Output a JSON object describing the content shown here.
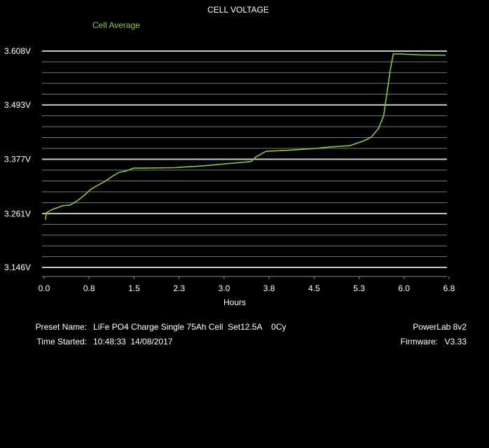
{
  "chart_data": {
    "type": "line",
    "title": "CELL VOLTAGE",
    "xlabel": "Hours",
    "x": [
      0.02,
      0.04,
      0.14,
      0.32,
      0.43,
      0.55,
      0.67,
      0.78,
      0.9,
      1.02,
      1.13,
      1.25,
      1.37,
      1.49,
      1.6,
      2.18,
      2.65,
      3.0,
      3.45,
      3.53,
      3.7,
      4.05,
      4.52,
      4.75,
      5.1,
      5.34,
      5.45,
      5.57,
      5.66,
      5.72,
      5.77,
      5.82,
      5.92,
      6.27,
      6.69
    ],
    "series": [
      {
        "name": "Cell Average",
        "color": "#8dc63f",
        "values": [
          3.248,
          3.263,
          3.27,
          3.278,
          3.279,
          3.288,
          3.3,
          3.313,
          3.322,
          3.33,
          3.34,
          3.349,
          3.352,
          3.358,
          3.358,
          3.359,
          3.363,
          3.367,
          3.372,
          3.382,
          3.394,
          3.396,
          3.4,
          3.403,
          3.406,
          3.417,
          3.424,
          3.442,
          3.47,
          3.523,
          3.568,
          3.602,
          3.602,
          3.6,
          3.599
        ]
      }
    ],
    "xlim": [
      0,
      6.75
    ],
    "xticks": [
      {
        "value": 0,
        "label": "0.0"
      },
      {
        "value": 0.75,
        "label": "0.8"
      },
      1.5,
      {
        "value": 2.25,
        "label": "2.3"
      },
      {
        "value": 3,
        "label": "3.0"
      },
      {
        "value": 3.75,
        "label": "3.8"
      },
      4.5,
      {
        "value": 5.25,
        "label": "5.3"
      },
      {
        "value": 6,
        "label": "6.0"
      },
      {
        "value": 6.75,
        "label": "6.8"
      }
    ],
    "ylim": [
      3.146,
      3.608
    ],
    "yticks": [
      {
        "value": 3.146,
        "label": "3.146V"
      },
      {
        "value": 3.261,
        "label": "3.261V"
      },
      {
        "value": 3.377,
        "label": "3.377V"
      },
      {
        "value": 3.493,
        "label": "3.493V"
      },
      {
        "value": 3.608,
        "label": "3.608V"
      }
    ],
    "grid": true
  },
  "info": {
    "preset_label": "Preset Name:",
    "preset": "LiFe PO4 Charge Single 75Ah Cell  Set12.5A    0Cy",
    "time_label": "Time Started:",
    "time": "10:48:33  14/08/2017",
    "device": "PowerLab 8v2",
    "firmware_label": "Firmware:",
    "firmware": "V3.33"
  }
}
